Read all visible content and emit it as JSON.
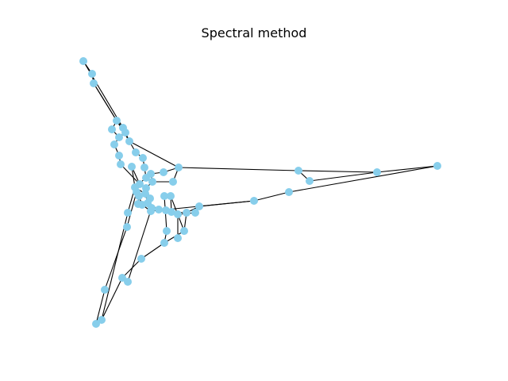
{
  "figure": {
    "title": "Spectral method"
  },
  "colors": {
    "node": "#87ceeb",
    "edge": "#000000",
    "background": "#ffffff"
  }
}
